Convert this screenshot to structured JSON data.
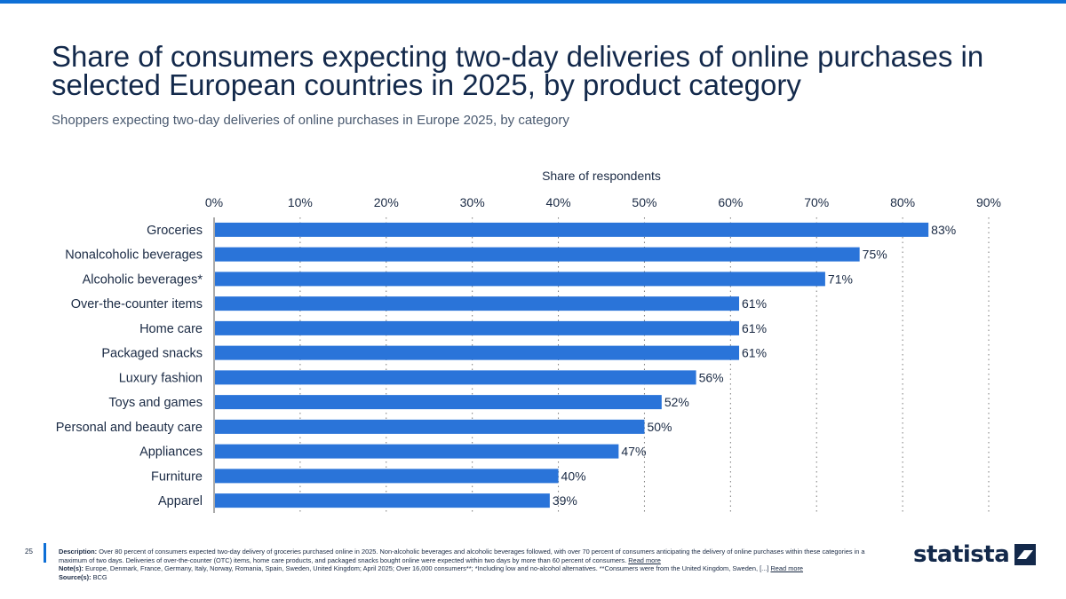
{
  "page": {
    "title": "Share of consumers expecting two-day deliveries of online purchases in selected European countries in 2025, by product category",
    "subtitle": "Shoppers expecting two-day deliveries of online purchases in Europe 2025, by category",
    "page_number": "25"
  },
  "footer": {
    "description_label": "Description:",
    "description_text": "Over 80 percent of consumers expected two-day delivery of groceries purchased online in 2025. Non-alcoholic beverages and alcoholic beverages followed, with over 70 percent of consumers anticipating the delivery of online purchases within these categories in a maximum of two days. Deliveries of over-the-counter (OTC) items, home care products, and packaged snacks bought online were expected within two days by more than 60 percent of consumers.",
    "read_more": "Read more",
    "notes_label": "Note(s):",
    "notes_text": "Europe, Denmark, France, Germany, Italy, Norway, Romania, Spain, Sweden, United Kingdom; April 2025; Over 16,000 consumers**; *Including low and no-alcohol alternatives.  **Consumers were from the United Kingdom, Sweden, [...]",
    "source_label": "Source(s):",
    "source_text": "BCG"
  },
  "logo": {
    "text": "statista"
  },
  "colors": {
    "bar": "#2a74d9",
    "accent": "#0e6fd6",
    "text": "#1a2a44",
    "grid": "#8a8a8a"
  },
  "chart_data": {
    "type": "bar",
    "orientation": "horizontal",
    "xlabel": "Share of respondents",
    "ylabel": "",
    "xlim": [
      0,
      90
    ],
    "ticks": [
      "0%",
      "10%",
      "20%",
      "30%",
      "40%",
      "50%",
      "60%",
      "70%",
      "80%",
      "90%"
    ],
    "grid": true,
    "categories": [
      "Groceries",
      "Nonalcoholic beverages",
      "Alcoholic beverages*",
      "Over-the-counter items",
      "Home care",
      "Packaged snacks",
      "Luxury fashion",
      "Toys and games",
      "Personal and beauty care",
      "Appliances",
      "Furniture",
      "Apparel"
    ],
    "values": [
      83,
      75,
      71,
      61,
      61,
      61,
      56,
      52,
      50,
      47,
      40,
      39
    ],
    "value_labels": [
      "83%",
      "75%",
      "71%",
      "61%",
      "61%",
      "61%",
      "56%",
      "52%",
      "50%",
      "47%",
      "40%",
      "39%"
    ]
  }
}
